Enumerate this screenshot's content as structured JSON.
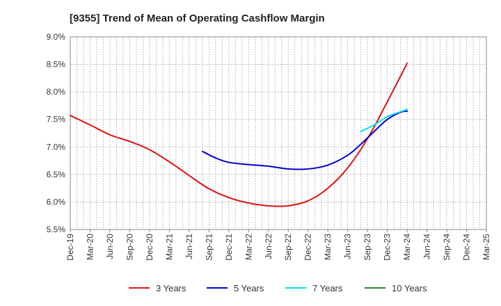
{
  "chart_data": {
    "type": "line",
    "title": "[9355]  Trend of Mean of Operating Cashflow Margin",
    "xlabel": "",
    "ylabel": "",
    "ylim": [
      5.5,
      9.0
    ],
    "y_ticks": [
      "5.5%",
      "6.0%",
      "6.5%",
      "7.0%",
      "7.5%",
      "8.0%",
      "8.5%",
      "9.0%"
    ],
    "y_tick_values": [
      5.5,
      6.0,
      6.5,
      7.0,
      7.5,
      8.0,
      8.5,
      9.0
    ],
    "x_ticks": [
      "Dec-19",
      "Mar-20",
      "Jun-20",
      "Sep-20",
      "Dec-20",
      "Mar-21",
      "Jun-21",
      "Sep-21",
      "Dec-21",
      "Mar-22",
      "Jun-22",
      "Sep-22",
      "Dec-22",
      "Mar-23",
      "Jun-23",
      "Sep-23",
      "Dec-23",
      "Mar-24",
      "Jun-24",
      "Sep-24",
      "Dec-24",
      "Mar-25"
    ],
    "months": 63,
    "grid": true,
    "legend_position": "bottom",
    "series": [
      {
        "name": "3 Years",
        "color": "#dd1111",
        "points": [
          [
            0,
            7.57
          ],
          [
            3,
            7.4
          ],
          [
            6,
            7.22
          ],
          [
            9,
            7.1
          ],
          [
            12,
            6.95
          ],
          [
            15,
            6.73
          ],
          [
            18,
            6.48
          ],
          [
            21,
            6.24
          ],
          [
            24,
            6.08
          ],
          [
            27,
            5.98
          ],
          [
            30,
            5.93
          ],
          [
            33,
            5.93
          ],
          [
            36,
            6.02
          ],
          [
            39,
            6.25
          ],
          [
            42,
            6.62
          ],
          [
            45,
            7.15
          ],
          [
            48,
            7.82
          ],
          [
            51,
            8.52
          ]
        ]
      },
      {
        "name": "5 Years",
        "color": "#0000cc",
        "points": [
          [
            20,
            6.92
          ],
          [
            22,
            6.8
          ],
          [
            24,
            6.72
          ],
          [
            27,
            6.68
          ],
          [
            30,
            6.65
          ],
          [
            33,
            6.6
          ],
          [
            36,
            6.6
          ],
          [
            39,
            6.67
          ],
          [
            42,
            6.85
          ],
          [
            44,
            7.05
          ],
          [
            46,
            7.28
          ],
          [
            48,
            7.5
          ],
          [
            50,
            7.63
          ],
          [
            51,
            7.65
          ]
        ]
      },
      {
        "name": "7 Years",
        "color": "#00e5ee",
        "points": [
          [
            44,
            7.28
          ],
          [
            46,
            7.4
          ],
          [
            48,
            7.55
          ],
          [
            50,
            7.64
          ],
          [
            51,
            7.68
          ]
        ]
      },
      {
        "name": "10 Years",
        "color": "#228822",
        "points": []
      }
    ]
  }
}
